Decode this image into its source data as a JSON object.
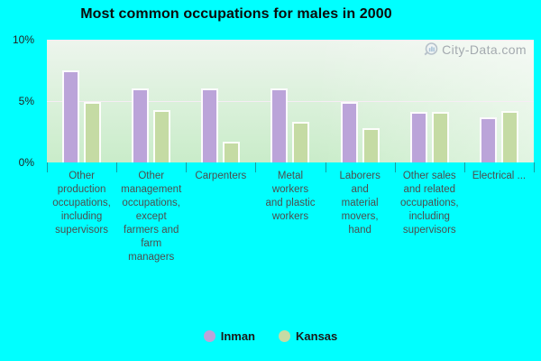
{
  "title": "Most common occupations for males in 2000",
  "watermark": {
    "text": "City-Data.com"
  },
  "colors": {
    "page_background": "#00ffff",
    "inman_bar": "#bba4d9",
    "kansas_bar": "#c5dba4",
    "plot_gradient_top": "#edf5ed",
    "plot_gradient_bottom": "#c9ecc9",
    "gridline": "#f8ecf6",
    "axis_label": "#222222",
    "category_label": "#4d4d4d",
    "title_text": "#0b0b0b"
  },
  "y_axis": {
    "labels_top_to_bottom": [
      "10%",
      "5%",
      "0%"
    ]
  },
  "chart_data": {
    "type": "bar",
    "title": "Most common occupations for males in 2000",
    "categories": [
      "Other production occupations, including supervisors",
      "Other management occupations, except farmers and farm managers",
      "Carpenters",
      "Metal workers and plastic workers",
      "Laborers and material movers, hand",
      "Other sales and related occupations, including supervisors",
      "Electrical ..."
    ],
    "categories_display": [
      "Other\nproduction\noccupations,\nincluding\nsupervisors",
      "Other\nmanagement\noccupations,\nexcept\nfarmers and\nfarm\nmanagers",
      "Carpenters",
      "Metal\nworkers\nand plastic\nworkers",
      "Laborers\nand\nmaterial\nmovers,\nhand",
      "Other sales\nand related\noccupations,\nincluding\nsupervisors",
      "Electrical ..."
    ],
    "series": [
      {
        "name": "Inman",
        "color": "#bba4d9",
        "values": [
          7.5,
          6.0,
          6.0,
          6.0,
          4.9,
          4.1,
          3.7
        ]
      },
      {
        "name": "Kansas",
        "color": "#c5dba4",
        "values": [
          4.9,
          4.3,
          1.7,
          3.3,
          2.8,
          4.1,
          4.2
        ]
      }
    ],
    "xlabel": "",
    "ylabel": "",
    "ylim": [
      0,
      10
    ],
    "y_tick_labels": [
      "0%",
      "5%",
      "10%"
    ],
    "grid": "horizontal",
    "legend_position": "bottom"
  }
}
